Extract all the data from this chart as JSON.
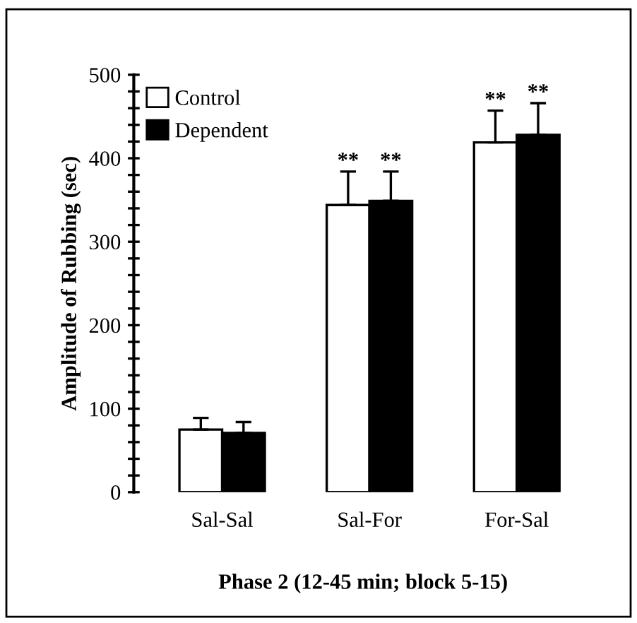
{
  "chart_data": {
    "type": "bar",
    "xlabel": "Phase 2 (12-45 min; block 5-15)",
    "ylabel": "Amplitude of Rubbing (sec)",
    "categories": [
      "Sal-Sal",
      "Sal-For",
      "For-Sal"
    ],
    "series": [
      {
        "name": "Control",
        "color": "#ffffff",
        "values": [
          75,
          344,
          419
        ],
        "errors": [
          [
            75,
            89
          ],
          [
            344,
            384
          ],
          [
            419,
            457
          ]
        ]
      },
      {
        "name": "Dependent",
        "color": "#000000",
        "values": [
          71,
          349,
          428
        ],
        "errors": [
          [
            71,
            84
          ],
          [
            349,
            384
          ],
          [
            428,
            466
          ]
        ]
      }
    ],
    "ylim": [
      0,
      500
    ],
    "yticks": [
      0,
      {
        "value": 20,
        "label": null
      },
      {
        "value": 40,
        "label": null
      },
      {
        "value": 60,
        "label": null
      },
      {
        "value": 80,
        "label": null
      },
      100,
      {
        "value": 120,
        "label": null
      },
      {
        "value": 140,
        "label": null
      },
      {
        "value": 160,
        "label": null
      },
      {
        "value": 180,
        "label": null
      },
      200,
      {
        "value": 220,
        "label": null
      },
      {
        "value": 240,
        "label": null
      },
      {
        "value": 260,
        "label": null
      },
      {
        "value": 280,
        "label": null
      },
      300,
      {
        "value": 320,
        "label": null
      },
      {
        "value": 340,
        "label": null
      },
      {
        "value": 360,
        "label": null
      },
      {
        "value": 380,
        "label": null
      },
      400,
      {
        "value": 420,
        "label": null
      },
      {
        "value": 440,
        "label": null
      },
      {
        "value": 460,
        "label": null
      },
      {
        "value": 480,
        "label": null
      },
      500
    ],
    "annotations": [
      "**",
      "**",
      "**",
      "**"
    ],
    "legend": "top left",
    "grid": false
  }
}
